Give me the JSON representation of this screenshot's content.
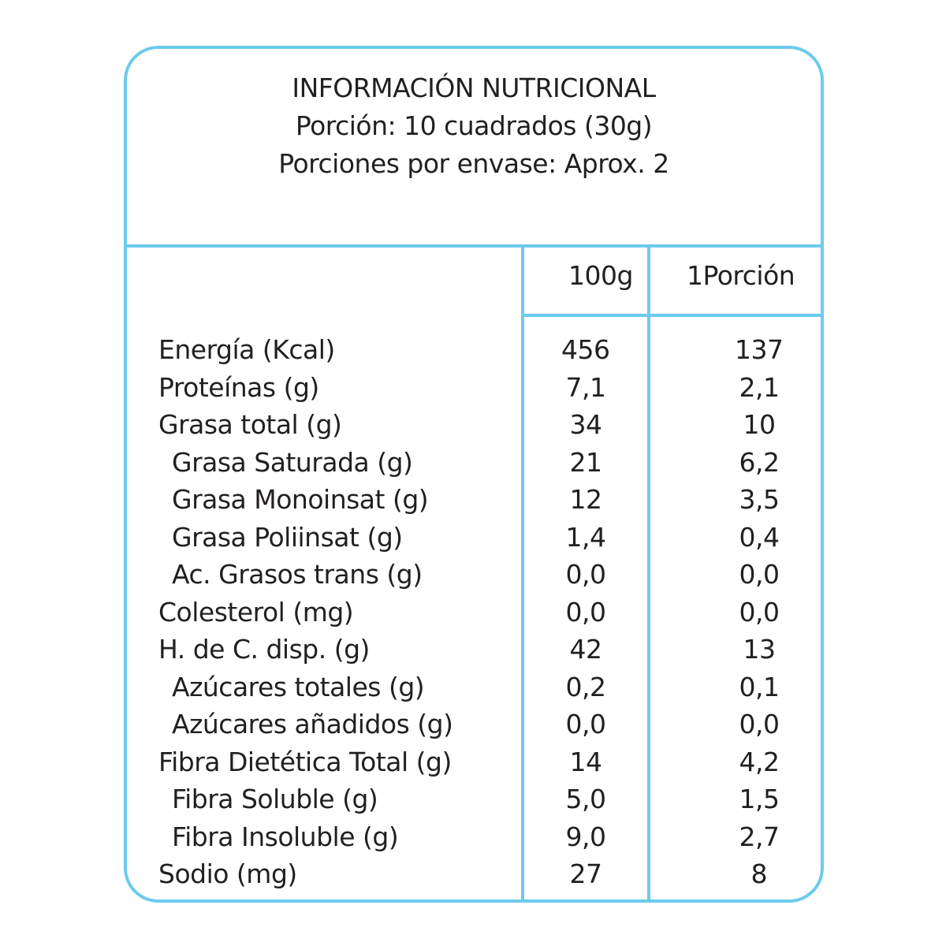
{
  "header": {
    "title": "INFORMACIÓN NUTRICIONAL",
    "serving": "Porción: 10 cuadrados (30g)",
    "servings_per_pack": "Porciones por envase: Aprox. 2"
  },
  "columns": {
    "per_100g": "100g",
    "per_portion": "1Porción"
  },
  "rows": [
    {
      "label": "Energía (Kcal)",
      "v100": "456",
      "vportion": "137",
      "indent": false
    },
    {
      "label": "Proteínas (g)",
      "v100": "7,1",
      "vportion": "2,1",
      "indent": false
    },
    {
      "label": "Grasa total (g)",
      "v100": "34",
      "vportion": "10",
      "indent": false
    },
    {
      "label": "Grasa Saturada (g)",
      "v100": "21",
      "vportion": "6,2",
      "indent": true
    },
    {
      "label": "Grasa Monoinsat (g)",
      "v100": "12",
      "vportion": "3,5",
      "indent": true
    },
    {
      "label": "Grasa Poliinsat (g)",
      "v100": "1,4",
      "vportion": "0,4",
      "indent": true
    },
    {
      "label": "Ac. Grasos trans (g)",
      "v100": "0,0",
      "vportion": "0,0",
      "indent": true
    },
    {
      "label": "Colesterol (mg)",
      "v100": "0,0",
      "vportion": "0,0",
      "indent": false
    },
    {
      "label": "H. de C. disp. (g)",
      "v100": "42",
      "vportion": "13",
      "indent": false
    },
    {
      "label": "Azúcares totales (g)",
      "v100": "0,2",
      "vportion": "0,1",
      "indent": true
    },
    {
      "label": "Azúcares añadidos (g)",
      "v100": "0,0",
      "vportion": "0,0",
      "indent": true
    },
    {
      "label": "Fibra Dietética Total (g)",
      "v100": "14",
      "vportion": "4,2",
      "indent": false
    },
    {
      "label": "Fibra Soluble (g)",
      "v100": "5,0",
      "vportion": "1,5",
      "indent": true
    },
    {
      "label": "Fibra Insoluble (g)",
      "v100": "9,0",
      "vportion": "2,7",
      "indent": true
    },
    {
      "label": "Sodio (mg)",
      "v100": "27",
      "vportion": "8",
      "indent": false
    }
  ],
  "colors": {
    "border": "#6ccbec",
    "text": "#231f20"
  }
}
